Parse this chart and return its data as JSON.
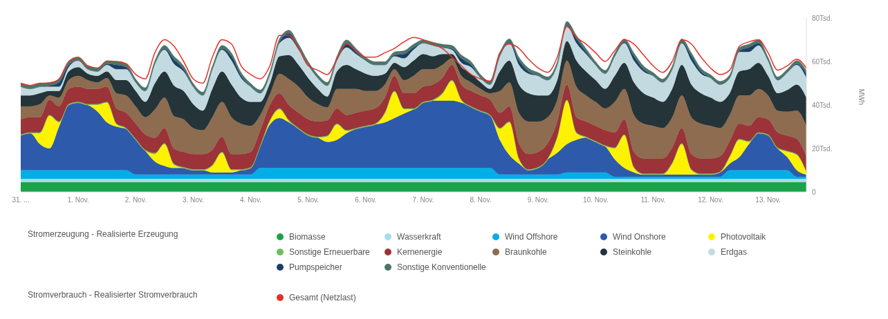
{
  "chart_data": {
    "type": "area",
    "stacked": true,
    "ylabel": "MWh",
    "legend_title": "Stromerzeugung - Realisierte Erzeugung",
    "annotations": [
      "Stromverbrauch - Realisierter Stromverbrauch"
    ],
    "legend": "bottom",
    "categories": [
      "31. ...",
      null,
      null,
      null,
      null,
      null,
      "1. Nov.",
      null,
      null,
      null,
      null,
      null,
      "2. Nov.",
      null,
      null,
      null,
      null,
      null,
      "3. Nov.",
      null,
      null,
      null,
      null,
      null,
      "4. Nov.",
      null,
      null,
      null,
      null,
      null,
      "5. Nov.",
      null,
      null,
      null,
      null,
      null,
      "6. Nov.",
      null,
      null,
      null,
      null,
      null,
      "7. Nov.",
      null,
      null,
      null,
      null,
      null,
      "8. Nov.",
      null,
      null,
      null,
      null,
      null,
      "9. Nov.",
      null,
      null,
      null,
      null,
      null,
      "10. Nov.",
      null,
      null,
      null,
      null,
      null,
      "11. Nov.",
      null,
      null,
      null,
      null,
      null,
      "12. Nov.",
      null,
      null,
      null,
      null,
      null,
      "13. Nov.",
      null,
      null,
      null,
      null
    ],
    "ylim": [
      0,
      80
    ],
    "yticks": [
      0,
      {
        "value": 20,
        "label": "20Tsd."
      },
      {
        "value": 40,
        "label": "40Tsd."
      },
      {
        "value": 60,
        "label": "60Tsd."
      },
      {
        "value": 80,
        "label": "80Tsd."
      }
    ],
    "series": [
      {
        "name": "Biomasse",
        "color": "#1aa34a",
        "values": [
          4.5,
          4.5,
          4.5,
          4.5,
          4.5,
          4.5,
          4.5,
          4.5,
          4.5,
          4.5,
          4.5,
          4.5,
          4.5,
          4.5,
          4.5,
          4.5,
          4.5,
          4.5,
          4.5,
          4.5,
          4.5,
          4.5,
          4.5,
          4.5,
          4.5,
          4.5,
          4.5,
          4.5,
          4.5,
          4.5,
          4.5,
          4.5,
          4.5,
          4.5,
          4.5,
          4.5,
          4.5,
          4.5,
          4.5,
          4.5,
          4.5,
          4.5,
          4.5,
          4.5,
          4.5,
          4.5,
          4.5,
          4.5,
          4.5,
          4.5,
          4.5,
          4.5,
          4.5,
          4.5,
          4.5,
          4.5,
          4.5,
          4.5,
          4.5,
          4.5,
          4.5,
          4.5,
          4.5,
          4.5,
          4.5,
          4.5,
          4.5,
          4.5,
          4.5,
          4.5,
          4.5,
          4.5,
          4.5,
          4.5,
          4.5,
          4.5,
          4.5,
          4.5,
          4.5,
          4.5,
          4.5,
          4.5,
          4.5
        ]
      },
      {
        "name": "Wasserkraft",
        "color": "#a8dcea",
        "values": [
          1.5,
          1.5,
          1.5,
          1.5,
          1.5,
          1.5,
          1.5,
          1.5,
          1.5,
          1.5,
          1.5,
          1.5,
          1.5,
          1.5,
          1.5,
          1.5,
          1.5,
          1.5,
          1.5,
          1.5,
          1.5,
          1.5,
          1.5,
          1.5,
          1.5,
          1.5,
          1.5,
          1.5,
          1.5,
          1.5,
          1.5,
          1.5,
          1.5,
          1.5,
          1.5,
          1.5,
          1.5,
          1.5,
          1.5,
          1.5,
          1.5,
          1.5,
          1.5,
          1.5,
          1.5,
          1.5,
          1.5,
          1.5,
          1.5,
          1.5,
          1.5,
          1.5,
          1.5,
          1.5,
          1.5,
          1.5,
          1.5,
          1.5,
          1.5,
          1.5,
          1.5,
          1.5,
          1.5,
          1.5,
          1.5,
          1.5,
          1.5,
          1.5,
          1.5,
          1.5,
          1.5,
          1.5,
          1.5,
          1.5,
          1.5,
          1.5,
          1.5,
          1.5,
          1.5,
          1.5,
          1.5,
          1.5,
          1.5
        ]
      },
      {
        "name": "Wind Offshore",
        "color": "#00aee6",
        "values": [
          4,
          4,
          4,
          4,
          4,
          4,
          4,
          4,
          4,
          4,
          4,
          4,
          2,
          2,
          2,
          2,
          2,
          2,
          2,
          2,
          2,
          2,
          2,
          2,
          2,
          5,
          5,
          5,
          5,
          5,
          5,
          5,
          5,
          5,
          5,
          5,
          5,
          5,
          5,
          5,
          5,
          5,
          5,
          5,
          5,
          5,
          5,
          5,
          5,
          5,
          2,
          2,
          2,
          2,
          2,
          2,
          2,
          3,
          3,
          3,
          3,
          3,
          1,
          1,
          1,
          1,
          1,
          1,
          1,
          1,
          1,
          1,
          1,
          1,
          4,
          4,
          4,
          4,
          4,
          4,
          4,
          1,
          1
        ]
      },
      {
        "name": "Wind Onshore",
        "color": "#2e5aac",
        "values": [
          16,
          17,
          12,
          10,
          20,
          30,
          31,
          30,
          27,
          22,
          20,
          19,
          16,
          11,
          6,
          4,
          3,
          3,
          2,
          2,
          1,
          1,
          1,
          2,
          3,
          10,
          20,
          23,
          21,
          18,
          15,
          14,
          12,
          13,
          16,
          18,
          19,
          20,
          21,
          23,
          25,
          27,
          30,
          31,
          31,
          31,
          30,
          28,
          26,
          24,
          16,
          9,
          5,
          2,
          3,
          7,
          10,
          13,
          15,
          16,
          14,
          12,
          8,
          4,
          2,
          1,
          1,
          1,
          1,
          1,
          1,
          1,
          1,
          2,
          3,
          6,
          12,
          17,
          16,
          10,
          6,
          3,
          1
        ]
      },
      {
        "name": "Photovoltaik",
        "color": "#fff200",
        "values": [
          0,
          0,
          5,
          15,
          2,
          0,
          0,
          0,
          3,
          9,
          1,
          0,
          0,
          0,
          3.5,
          10,
          1.5,
          0,
          0,
          0,
          3,
          9,
          1,
          0,
          0,
          0,
          1.5,
          4,
          0.5,
          0,
          0,
          0,
          2.5,
          7,
          1,
          0,
          0,
          0,
          4,
          12,
          2,
          0,
          0,
          0,
          3,
          9,
          1,
          0,
          0,
          0,
          5,
          15,
          2,
          0,
          0,
          0,
          7,
          20,
          3,
          0,
          0,
          0,
          5,
          15,
          2,
          0,
          0,
          0,
          5,
          14,
          2,
          0,
          0,
          0,
          3,
          8,
          1,
          0,
          0,
          0,
          2.5,
          7,
          1
        ]
      },
      {
        "name": "Sonstige Erneuerbare",
        "color": "#6dbf5e",
        "values": [
          0.4,
          0.4,
          0.4,
          0.4,
          0.4,
          0.4,
          0.4,
          0.4,
          0.4,
          0.4,
          0.4,
          0.4,
          0.4,
          0.4,
          0.4,
          0.4,
          0.4,
          0.4,
          0.4,
          0.4,
          0.4,
          0.4,
          0.4,
          0.4,
          0.4,
          0.4,
          0.4,
          0.4,
          0.4,
          0.4,
          0.4,
          0.4,
          0.4,
          0.4,
          0.4,
          0.4,
          0.4,
          0.4,
          0.4,
          0.4,
          0.4,
          0.4,
          0.4,
          0.4,
          0.4,
          0.4,
          0.4,
          0.4,
          0.4,
          0.4,
          0.4,
          0.4,
          0.4,
          0.4,
          0.4,
          0.4,
          0.4,
          0.4,
          0.4,
          0.4,
          0.4,
          0.4,
          0.4,
          0.4,
          0.4,
          0.4,
          0.4,
          0.4,
          0.4,
          0.4,
          0.4,
          0.4,
          0.4,
          0.4,
          0.4,
          0.4,
          0.4,
          0.4,
          0.4,
          0.4,
          0.4,
          0.4,
          0.4
        ]
      },
      {
        "name": "Kernenergie",
        "color": "#9b3338",
        "values": [
          7,
          7,
          7,
          7,
          7,
          7,
          7,
          7,
          7,
          7,
          7,
          7,
          7,
          7,
          7,
          7,
          7,
          7,
          7,
          7,
          7,
          7,
          7,
          7,
          7,
          7,
          7,
          7,
          7,
          7,
          7,
          7,
          7,
          7,
          7,
          7,
          7,
          7,
          7,
          7,
          7,
          7,
          7,
          7,
          7,
          7,
          7,
          7,
          7,
          7,
          7,
          7,
          7,
          7,
          7,
          7,
          7,
          7,
          7,
          7,
          7,
          7,
          7,
          7,
          7,
          7,
          7,
          7,
          7,
          7,
          7,
          7,
          7,
          7,
          7,
          7,
          7,
          7,
          7,
          7,
          7,
          7,
          7
        ]
      },
      {
        "name": "Braunkohle",
        "color": "#8e6c4f",
        "values": [
          6,
          5,
          6,
          2,
          4,
          4,
          5,
          4,
          3,
          4,
          7,
          8,
          8,
          8,
          13,
          14,
          15,
          15,
          12,
          11,
          15,
          16,
          17,
          14,
          12,
          7,
          5,
          9,
          12,
          12,
          10,
          8,
          6,
          9,
          12,
          11,
          9,
          8,
          6,
          3,
          6,
          8,
          8,
          7,
          6,
          3,
          4,
          4,
          3,
          3,
          10,
          11,
          14,
          15,
          14,
          12,
          10,
          11,
          14,
          12,
          11,
          10,
          14,
          14,
          17,
          16,
          15,
          14,
          14,
          15,
          17,
          16,
          15,
          13,
          12,
          13,
          14,
          13,
          11,
          10,
          11,
          13,
          14
        ]
      },
      {
        "name": "Steinkohle",
        "color": "#243438",
        "values": [
          5,
          5,
          5,
          2,
          3,
          4,
          4,
          3,
          3,
          3,
          6,
          7,
          7,
          7,
          12,
          12,
          14,
          13,
          11,
          9,
          13,
          14,
          15,
          12,
          11,
          6,
          5,
          8,
          11,
          10,
          9,
          7,
          5,
          8,
          11,
          9,
          8,
          7,
          5,
          3,
          6,
          7,
          7,
          6,
          5,
          2,
          4,
          4,
          3,
          2,
          9,
          10,
          13,
          13,
          12,
          10,
          9,
          9,
          12,
          11,
          10,
          9,
          12,
          12,
          15,
          14,
          13,
          12,
          13,
          14,
          15,
          14,
          13,
          12,
          10,
          11,
          12,
          12,
          9,
          8,
          10,
          12,
          13
        ]
      },
      {
        "name": "Erdgas",
        "color": "#c3dbe0",
        "values": [
          4,
          3,
          3,
          2,
          2,
          2,
          3,
          2,
          2,
          3,
          5,
          5,
          4,
          5,
          9,
          10,
          10,
          9,
          8,
          7,
          9,
          10,
          11,
          9,
          7,
          4,
          4,
          6,
          8,
          7,
          6,
          5,
          5,
          5,
          8,
          7,
          6,
          5,
          4,
          3,
          4,
          5,
          5,
          5,
          3,
          2,
          2,
          3,
          2,
          2,
          7,
          8,
          9,
          9,
          9,
          7,
          7,
          7,
          8,
          8,
          7,
          7,
          9,
          9,
          10,
          10,
          10,
          9,
          9,
          10,
          11,
          9,
          9,
          8,
          7,
          9,
          8,
          8,
          7,
          6,
          8,
          9,
          9
        ]
      },
      {
        "name": "Pumpspeicher",
        "color": "#1c3f66",
        "values": [
          0,
          0,
          0,
          0.5,
          2,
          1,
          0,
          0,
          0,
          0.5,
          2,
          1,
          0,
          0,
          0,
          0.5,
          2,
          1,
          0,
          0,
          0,
          0.5,
          2,
          1,
          0,
          0,
          0,
          0.5,
          2,
          1,
          0,
          0,
          0,
          0.5,
          2,
          1,
          0,
          0,
          0,
          0.5,
          2,
          1,
          0,
          0,
          0,
          0.5,
          2,
          1,
          0,
          0,
          0,
          0.5,
          2,
          1,
          0,
          0,
          0,
          0.5,
          2,
          1,
          0,
          0,
          0,
          0.5,
          2,
          1,
          0,
          0,
          0,
          0.5,
          2,
          1,
          0,
          0,
          0,
          0.5,
          2,
          1,
          0,
          0,
          0,
          0.5,
          2
        ]
      },
      {
        "name": "Sonstige Konventionelle",
        "color": "#4e7469",
        "values": [
          1.5,
          1.5,
          1.5,
          1.5,
          1.5,
          1.5,
          1.5,
          1.5,
          1.5,
          1.5,
          1.5,
          1.5,
          1.5,
          1.5,
          1.5,
          1.5,
          1.5,
          1.5,
          1.5,
          1.5,
          1.5,
          1.5,
          1.5,
          1.5,
          1.5,
          1.5,
          1.5,
          1.5,
          1.5,
          1.5,
          1.5,
          1.5,
          1.5,
          1.5,
          1.5,
          1.5,
          1.5,
          1.5,
          1.5,
          1.5,
          1.5,
          1.5,
          1.5,
          1.5,
          1.5,
          1.5,
          1.5,
          1.5,
          1.5,
          1.5,
          1.5,
          1.5,
          1.5,
          1.5,
          1.5,
          1.5,
          1.5,
          1.5,
          1.5,
          1.5,
          1.5,
          1.5,
          1.5,
          1.5,
          1.5,
          1.5,
          1.5,
          1.5,
          1.5,
          1.5,
          1.5,
          1.5,
          1.5,
          1.5,
          1.5,
          1.5,
          1.5,
          1.5,
          1.5,
          1.5,
          1.5,
          1.5,
          1.5
        ]
      },
      {
        "name": "Gesamt (Netzlast)",
        "type": "line",
        "color": "#e53027",
        "values": [
          50,
          49,
          50,
          50,
          52,
          60,
          62,
          58,
          57,
          60,
          60,
          59,
          54,
          52,
          64,
          70,
          67,
          60,
          52,
          50,
          62,
          70,
          68,
          58,
          54,
          52,
          58,
          72,
          72,
          66,
          58,
          56,
          54,
          61,
          68,
          65,
          62,
          62,
          64,
          66,
          69,
          71,
          70,
          68,
          66,
          62,
          58,
          54,
          52,
          51,
          64,
          68,
          66,
          61,
          57,
          55,
          62,
          76,
          71,
          68,
          64,
          60,
          65,
          70,
          68,
          63,
          58,
          55,
          60,
          70,
          68,
          62,
          57,
          54,
          56,
          67,
          69,
          70,
          64,
          56,
          58,
          61,
          57
        ]
      }
    ]
  }
}
